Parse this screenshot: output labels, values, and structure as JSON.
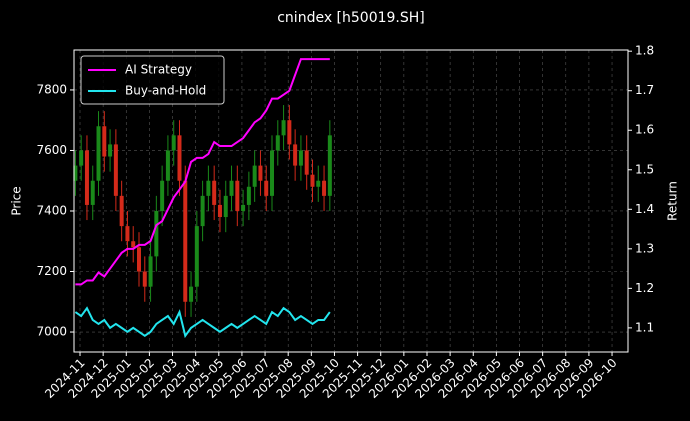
{
  "chart_data": {
    "type": "candlestick",
    "title": "cnindex [h50019.SH]",
    "y_label": "Price",
    "y2_label": "Return",
    "x": [
      -0.2,
      0.05,
      0.3,
      0.55,
      0.8,
      1.05,
      1.3,
      1.55,
      1.8,
      2.05,
      2.3,
      2.55,
      2.8,
      3.05,
      3.3,
      3.55,
      3.8,
      4.05,
      4.3,
      4.55,
      4.8,
      5.05,
      5.3,
      5.55,
      5.8,
      6.05,
      6.3,
      6.55,
      6.8,
      7.05,
      7.3,
      7.55,
      7.8,
      8.05,
      8.3,
      8.55,
      8.8,
      9.05,
      9.3,
      9.55,
      9.8,
      10.05,
      10.3,
      10.55,
      10.8
    ],
    "open": [
      7500,
      7550,
      7600,
      7420,
      7500,
      7680,
      7580,
      7620,
      7450,
      7350,
      7300,
      7280,
      7200,
      7150,
      7250,
      7400,
      7500,
      7600,
      7650,
      7500,
      7100,
      7150,
      7350,
      7450,
      7500,
      7420,
      7380,
      7450,
      7500,
      7400,
      7420,
      7480,
      7550,
      7500,
      7450,
      7600,
      7650,
      7700,
      7620,
      7550,
      7600,
      7520,
      7480,
      7500,
      7450
    ],
    "high": [
      7600,
      7650,
      7650,
      7550,
      7730,
      7730,
      7670,
      7670,
      7500,
      7400,
      7350,
      7330,
      7250,
      7300,
      7450,
      7550,
      7650,
      7700,
      7700,
      7550,
      7200,
      7400,
      7500,
      7550,
      7550,
      7470,
      7500,
      7550,
      7550,
      7470,
      7530,
      7600,
      7600,
      7550,
      7650,
      7700,
      7750,
      7750,
      7670,
      7650,
      7650,
      7570,
      7550,
      7550,
      7700
    ],
    "low": [
      7450,
      7500,
      7370,
      7370,
      7450,
      7530,
      7530,
      7400,
      7300,
      7250,
      7230,
      7150,
      7100,
      7100,
      7200,
      7350,
      7450,
      7550,
      7450,
      7050,
      7050,
      7100,
      7300,
      7400,
      7370,
      7330,
      7330,
      7400,
      7350,
      7350,
      7370,
      7430,
      7450,
      7400,
      7400,
      7550,
      7600,
      7570,
      7500,
      7500,
      7470,
      7430,
      7430,
      7400,
      7400
    ],
    "close": [
      7550,
      7600,
      7420,
      7500,
      7680,
      7580,
      7620,
      7450,
      7350,
      7300,
      7280,
      7200,
      7150,
      7250,
      7400,
      7500,
      7600,
      7650,
      7500,
      7100,
      7150,
      7350,
      7450,
      7500,
      7420,
      7380,
      7450,
      7500,
      7400,
      7420,
      7480,
      7550,
      7500,
      7450,
      7600,
      7650,
      7700,
      7620,
      7550,
      7600,
      7520,
      7480,
      7500,
      7450,
      7650
    ],
    "up_color": "#1a8a1a",
    "down_color": "#d42a1a",
    "series": [
      {
        "name": "AI Strategy",
        "color": "#ff00ff",
        "axis": "y2",
        "values": [
          1.21,
          1.21,
          1.22,
          1.22,
          1.24,
          1.23,
          1.25,
          1.27,
          1.29,
          1.3,
          1.3,
          1.31,
          1.31,
          1.32,
          1.36,
          1.37,
          1.4,
          1.43,
          1.45,
          1.47,
          1.52,
          1.53,
          1.53,
          1.54,
          1.57,
          1.56,
          1.56,
          1.56,
          1.57,
          1.58,
          1.6,
          1.62,
          1.63,
          1.65,
          1.68,
          1.68,
          1.69,
          1.7,
          1.74,
          1.78,
          1.78,
          1.78,
          1.78,
          1.78,
          1.78
        ]
      },
      {
        "name": "Buy-and-Hold",
        "color": "#22e5ee",
        "axis": "y2",
        "values": [
          1.14,
          1.13,
          1.15,
          1.12,
          1.11,
          1.12,
          1.1,
          1.11,
          1.1,
          1.09,
          1.1,
          1.09,
          1.08,
          1.09,
          1.11,
          1.12,
          1.13,
          1.11,
          1.14,
          1.08,
          1.1,
          1.11,
          1.12,
          1.11,
          1.1,
          1.09,
          1.1,
          1.11,
          1.1,
          1.11,
          1.12,
          1.13,
          1.12,
          1.11,
          1.14,
          1.13,
          1.15,
          1.14,
          1.12,
          1.13,
          1.12,
          1.11,
          1.12,
          1.12,
          1.14
        ]
      }
    ],
    "xlim": [
      -0.26,
      23.69
    ],
    "xticks": [
      {
        "value": 0,
        "label": "2024-11"
      },
      {
        "value": 1,
        "label": "2024-12"
      },
      {
        "value": 2,
        "label": "2025-01"
      },
      {
        "value": 3,
        "label": "2025-02"
      },
      {
        "value": 4,
        "label": "2025-03"
      },
      {
        "value": 5,
        "label": "2025-04"
      },
      {
        "value": 6,
        "label": "2025-05"
      },
      {
        "value": 7,
        "label": "2025-06"
      },
      {
        "value": 8,
        "label": "2025-07"
      },
      {
        "value": 9,
        "label": "2025-08"
      },
      {
        "value": 10,
        "label": "2025-09"
      },
      {
        "value": 11,
        "label": "2025-10"
      },
      {
        "value": 12,
        "label": "2025-11"
      },
      {
        "value": 13,
        "label": "2025-12"
      },
      {
        "value": 14,
        "label": "2026-01"
      },
      {
        "value": 15,
        "label": "2026-02"
      },
      {
        "value": 16,
        "label": "2026-03"
      },
      {
        "value": 17,
        "label": "2026-04"
      },
      {
        "value": 18,
        "label": "2026-05"
      },
      {
        "value": 19,
        "label": "2026-06"
      },
      {
        "value": 20,
        "label": "2026-07"
      },
      {
        "value": 21,
        "label": "2026-08"
      },
      {
        "value": 22,
        "label": "2026-09"
      },
      {
        "value": 23,
        "label": "2026-10"
      }
    ],
    "ylim": [
      6934,
      7932
    ],
    "yticks": [
      7000,
      7200,
      7400,
      7600,
      7800
    ],
    "y2lim": [
      1.039,
      1.803
    ],
    "y2ticks": [
      1.1,
      1.2,
      1.3,
      1.4,
      1.5,
      1.6,
      1.7,
      1.8
    ],
    "grid": true,
    "legend": "upper left"
  }
}
